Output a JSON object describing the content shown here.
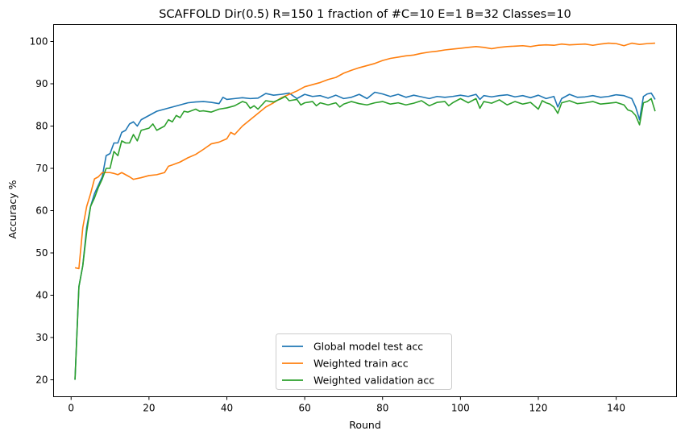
{
  "chart_data": {
    "type": "line",
    "title": "SCAFFOLD Dir(0.5) R=150 1 fraction of #C=10 E=1 B=32  Classes=10",
    "xlabel": "Round",
    "ylabel": "Accuracy %",
    "xlim": [
      -4.5,
      155.5
    ],
    "ylim": [
      16,
      104
    ],
    "xticks": [
      0,
      20,
      40,
      60,
      80,
      100,
      120,
      140
    ],
    "yticks": [
      20,
      30,
      40,
      50,
      60,
      70,
      80,
      90,
      100
    ],
    "grid": false,
    "legend_position": "lower-center",
    "series": [
      {
        "name": "Global model test acc",
        "color": "#1f77b4",
        "points": [
          [
            1,
            20
          ],
          [
            2,
            42
          ],
          [
            3,
            47
          ],
          [
            4,
            56
          ],
          [
            5,
            61
          ],
          [
            6,
            64
          ],
          [
            7,
            66
          ],
          [
            8,
            68
          ],
          [
            9,
            73
          ],
          [
            10,
            73.5
          ],
          [
            11,
            76
          ],
          [
            12,
            76
          ],
          [
            13,
            78.5
          ],
          [
            14,
            79
          ],
          [
            15,
            80.5
          ],
          [
            16,
            81
          ],
          [
            17,
            80
          ],
          [
            18,
            81.5
          ],
          [
            19,
            82
          ],
          [
            20,
            82.5
          ],
          [
            22,
            83.5
          ],
          [
            24,
            84
          ],
          [
            26,
            84.5
          ],
          [
            28,
            85
          ],
          [
            30,
            85.5
          ],
          [
            32,
            85.7
          ],
          [
            34,
            85.8
          ],
          [
            36,
            85.6
          ],
          [
            38,
            85.3
          ],
          [
            39,
            86.8
          ],
          [
            40,
            86.3
          ],
          [
            42,
            86.5
          ],
          [
            44,
            86.7
          ],
          [
            46,
            86.5
          ],
          [
            48,
            86.6
          ],
          [
            50,
            87.7
          ],
          [
            52,
            87.3
          ],
          [
            54,
            87.5
          ],
          [
            56,
            87.8
          ],
          [
            58,
            86.5
          ],
          [
            60,
            87.5
          ],
          [
            62,
            87
          ],
          [
            64,
            87.2
          ],
          [
            66,
            86.6
          ],
          [
            68,
            87.3
          ],
          [
            70,
            86.5
          ],
          [
            72,
            86.8
          ],
          [
            74,
            87.5
          ],
          [
            76,
            86.5
          ],
          [
            78,
            88
          ],
          [
            80,
            87.6
          ],
          [
            82,
            87
          ],
          [
            84,
            87.5
          ],
          [
            86,
            86.8
          ],
          [
            88,
            87.3
          ],
          [
            90,
            86.9
          ],
          [
            92,
            86.5
          ],
          [
            94,
            87.0
          ],
          [
            96,
            86.8
          ],
          [
            98,
            87.0
          ],
          [
            100,
            87.3
          ],
          [
            102,
            87.0
          ],
          [
            104,
            87.5
          ],
          [
            105,
            86.3
          ],
          [
            106,
            87.2
          ],
          [
            108,
            86.9
          ],
          [
            110,
            87.2
          ],
          [
            112,
            87.4
          ],
          [
            114,
            86.9
          ],
          [
            116,
            87.2
          ],
          [
            118,
            86.7
          ],
          [
            120,
            87.3
          ],
          [
            122,
            86.5
          ],
          [
            124,
            87.0
          ],
          [
            125,
            84.5
          ],
          [
            126,
            86.5
          ],
          [
            128,
            87.5
          ],
          [
            130,
            86.8
          ],
          [
            132,
            86.9
          ],
          [
            134,
            87.2
          ],
          [
            136,
            86.8
          ],
          [
            138,
            87.0
          ],
          [
            140,
            87.4
          ],
          [
            142,
            87.2
          ],
          [
            144,
            86.5
          ],
          [
            145,
            84.5
          ],
          [
            146,
            81.5
          ],
          [
            147,
            87.0
          ],
          [
            148,
            87.6
          ],
          [
            149,
            87.8
          ],
          [
            150,
            86.3
          ]
        ]
      },
      {
        "name": "Weighted train acc",
        "color": "#ff7f0e",
        "points": [
          [
            1,
            46.5
          ],
          [
            2,
            46.3
          ],
          [
            3,
            56
          ],
          [
            4,
            61
          ],
          [
            5,
            64
          ],
          [
            6,
            67.5
          ],
          [
            7,
            68
          ],
          [
            8,
            69
          ],
          [
            9,
            69
          ],
          [
            10,
            69
          ],
          [
            11,
            68.8
          ],
          [
            12,
            68.5
          ],
          [
            13,
            69
          ],
          [
            14,
            68.5
          ],
          [
            15,
            68
          ],
          [
            16,
            67.4
          ],
          [
            18,
            67.8
          ],
          [
            20,
            68.3
          ],
          [
            22,
            68.5
          ],
          [
            24,
            69
          ],
          [
            25,
            70.5
          ],
          [
            26,
            70.8
          ],
          [
            28,
            71.5
          ],
          [
            30,
            72.5
          ],
          [
            32,
            73.3
          ],
          [
            34,
            74.5
          ],
          [
            36,
            75.8
          ],
          [
            38,
            76.2
          ],
          [
            40,
            77
          ],
          [
            41,
            78.5
          ],
          [
            42,
            78
          ],
          [
            44,
            80
          ],
          [
            46,
            81.5
          ],
          [
            48,
            83
          ],
          [
            50,
            84.5
          ],
          [
            52,
            85.5
          ],
          [
            54,
            86.7
          ],
          [
            56,
            87.5
          ],
          [
            58,
            88.3
          ],
          [
            60,
            89.3
          ],
          [
            62,
            89.8
          ],
          [
            64,
            90.3
          ],
          [
            66,
            91
          ],
          [
            68,
            91.5
          ],
          [
            70,
            92.5
          ],
          [
            72,
            93.2
          ],
          [
            74,
            93.8
          ],
          [
            76,
            94.3
          ],
          [
            78,
            94.8
          ],
          [
            80,
            95.5
          ],
          [
            82,
            96
          ],
          [
            84,
            96.3
          ],
          [
            86,
            96.6
          ],
          [
            88,
            96.8
          ],
          [
            90,
            97.2
          ],
          [
            92,
            97.5
          ],
          [
            94,
            97.7
          ],
          [
            96,
            98
          ],
          [
            98,
            98.2
          ],
          [
            100,
            98.4
          ],
          [
            102,
            98.6
          ],
          [
            104,
            98.8
          ],
          [
            106,
            98.6
          ],
          [
            108,
            98.3
          ],
          [
            110,
            98.6
          ],
          [
            112,
            98.8
          ],
          [
            114,
            98.9
          ],
          [
            116,
            99.0
          ],
          [
            118,
            98.8
          ],
          [
            120,
            99.1
          ],
          [
            122,
            99.2
          ],
          [
            124,
            99.1
          ],
          [
            126,
            99.4
          ],
          [
            128,
            99.2
          ],
          [
            130,
            99.3
          ],
          [
            132,
            99.4
          ],
          [
            134,
            99.1
          ],
          [
            136,
            99.4
          ],
          [
            138,
            99.6
          ],
          [
            140,
            99.5
          ],
          [
            142,
            99.0
          ],
          [
            144,
            99.6
          ],
          [
            146,
            99.3
          ],
          [
            148,
            99.5
          ],
          [
            150,
            99.6
          ]
        ]
      },
      {
        "name": "Weighted validation acc",
        "color": "#2ca02c",
        "points": [
          [
            1,
            20
          ],
          [
            2,
            42
          ],
          [
            3,
            47
          ],
          [
            4,
            55
          ],
          [
            5,
            61
          ],
          [
            6,
            63
          ],
          [
            7,
            65.5
          ],
          [
            8,
            67.5
          ],
          [
            9,
            70
          ],
          [
            10,
            70
          ],
          [
            11,
            74
          ],
          [
            12,
            73
          ],
          [
            13,
            76.5
          ],
          [
            14,
            76
          ],
          [
            15,
            76
          ],
          [
            16,
            78
          ],
          [
            17,
            76.5
          ],
          [
            18,
            79
          ],
          [
            20,
            79.5
          ],
          [
            21,
            80.5
          ],
          [
            22,
            79
          ],
          [
            24,
            80
          ],
          [
            25,
            81.5
          ],
          [
            26,
            81
          ],
          [
            27,
            82.5
          ],
          [
            28,
            82
          ],
          [
            29,
            83.5
          ],
          [
            30,
            83.3
          ],
          [
            32,
            84
          ],
          [
            33,
            83.5
          ],
          [
            34,
            83.6
          ],
          [
            36,
            83.3
          ],
          [
            38,
            84
          ],
          [
            40,
            84.3
          ],
          [
            42,
            84.8
          ],
          [
            44,
            85.8
          ],
          [
            45,
            85.5
          ],
          [
            46,
            84.2
          ],
          [
            47,
            84.8
          ],
          [
            48,
            84
          ],
          [
            50,
            86
          ],
          [
            52,
            85.7
          ],
          [
            54,
            86.5
          ],
          [
            55,
            87
          ],
          [
            56,
            86
          ],
          [
            58,
            86.3
          ],
          [
            59,
            85
          ],
          [
            60,
            85.5
          ],
          [
            62,
            85.8
          ],
          [
            63,
            84.8
          ],
          [
            64,
            85.5
          ],
          [
            66,
            85
          ],
          [
            68,
            85.5
          ],
          [
            69,
            84.5
          ],
          [
            70,
            85.2
          ],
          [
            72,
            85.8
          ],
          [
            74,
            85.3
          ],
          [
            76,
            85.0
          ],
          [
            78,
            85.5
          ],
          [
            80,
            85.8
          ],
          [
            82,
            85.2
          ],
          [
            84,
            85.5
          ],
          [
            86,
            85.0
          ],
          [
            88,
            85.4
          ],
          [
            90,
            86.0
          ],
          [
            92,
            84.8
          ],
          [
            94,
            85.6
          ],
          [
            96,
            85.8
          ],
          [
            97,
            84.8
          ],
          [
            98,
            85.5
          ],
          [
            100,
            86.5
          ],
          [
            102,
            85.5
          ],
          [
            104,
            86.5
          ],
          [
            105,
            84.2
          ],
          [
            106,
            85.8
          ],
          [
            108,
            85.4
          ],
          [
            110,
            86.2
          ],
          [
            112,
            85.0
          ],
          [
            114,
            85.8
          ],
          [
            116,
            85.2
          ],
          [
            118,
            85.6
          ],
          [
            120,
            84.0
          ],
          [
            121,
            86.0
          ],
          [
            122,
            85.5
          ],
          [
            123,
            85.2
          ],
          [
            124,
            84.5
          ],
          [
            125,
            83.0
          ],
          [
            126,
            85.5
          ],
          [
            128,
            86.0
          ],
          [
            130,
            85.3
          ],
          [
            132,
            85.5
          ],
          [
            134,
            85.8
          ],
          [
            136,
            85.2
          ],
          [
            138,
            85.4
          ],
          [
            140,
            85.6
          ],
          [
            142,
            85.0
          ],
          [
            143,
            83.8
          ],
          [
            144,
            83.5
          ],
          [
            145,
            82.5
          ],
          [
            146,
            80.3
          ],
          [
            147,
            85.5
          ],
          [
            148,
            85.8
          ],
          [
            149,
            86.5
          ],
          [
            150,
            83.5
          ]
        ]
      }
    ]
  }
}
